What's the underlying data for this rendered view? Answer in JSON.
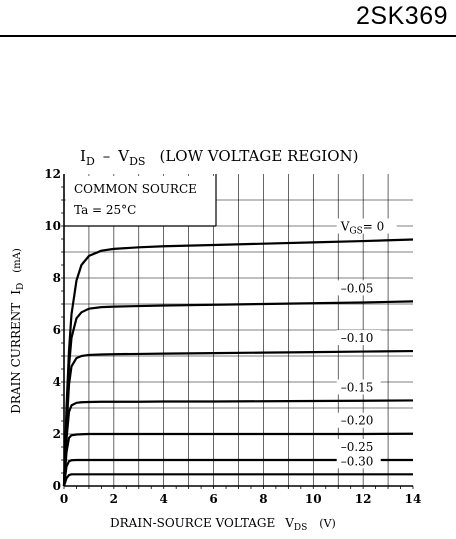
{
  "header": {
    "part_number": "2SK369"
  },
  "chart_data": {
    "type": "line",
    "title": {
      "main_left": "I",
      "main_left_sub": "D",
      "dash": "–",
      "main_right": "V",
      "main_right_sub": "DS",
      "region": "(LOW VOLTAGE REGION)"
    },
    "xlabel": {
      "text": "DRAIN-SOURCE VOLTAGE",
      "symbol": "V",
      "symbol_sub": "DS",
      "unit": "(V)"
    },
    "ylabel": {
      "text": "DRAIN CURRENT",
      "symbol": "I",
      "symbol_sub": "D",
      "unit": "(mA)"
    },
    "xlim": [
      0,
      14
    ],
    "ylim": [
      0,
      12
    ],
    "x_ticks": [
      0,
      2,
      4,
      6,
      8,
      10,
      12,
      14
    ],
    "y_ticks": [
      0,
      2,
      4,
      6,
      8,
      10,
      12
    ],
    "grid": true,
    "conditions": {
      "line1": "COMMON SOURCE",
      "line2": "Ta = 25°C"
    },
    "series_label_prefix": "V",
    "series_label_prefix_sub": "GS",
    "series": [
      {
        "name": "VGS = 0",
        "label": "= 0",
        "x": [
          0,
          0.1,
          0.2,
          0.3,
          0.5,
          0.7,
          1.0,
          1.5,
          2,
          3,
          4,
          6,
          8,
          10,
          12,
          14
        ],
        "y": [
          0,
          3.0,
          5.2,
          6.6,
          7.9,
          8.5,
          8.85,
          9.05,
          9.12,
          9.18,
          9.22,
          9.27,
          9.32,
          9.37,
          9.42,
          9.48
        ]
      },
      {
        "name": "VGS = -0.05",
        "label": "–0.05",
        "x": [
          0,
          0.1,
          0.2,
          0.3,
          0.5,
          0.7,
          1.0,
          1.5,
          2,
          3,
          4,
          6,
          8,
          10,
          12,
          14
        ],
        "y": [
          0,
          2.6,
          4.6,
          5.7,
          6.45,
          6.68,
          6.82,
          6.88,
          6.9,
          6.92,
          6.94,
          6.97,
          7.0,
          7.03,
          7.06,
          7.1
        ]
      },
      {
        "name": "VGS = -0.10",
        "label": "–0.10",
        "x": [
          0,
          0.1,
          0.2,
          0.3,
          0.5,
          0.7,
          1.0,
          1.5,
          2,
          3,
          4,
          6,
          8,
          10,
          12,
          14
        ],
        "y": [
          0,
          2.2,
          3.9,
          4.6,
          4.92,
          5.0,
          5.04,
          5.06,
          5.07,
          5.08,
          5.09,
          5.11,
          5.13,
          5.15,
          5.17,
          5.19
        ]
      },
      {
        "name": "VGS = -0.15",
        "label": "–0.15",
        "x": [
          0,
          0.1,
          0.2,
          0.3,
          0.5,
          0.7,
          1.0,
          1.5,
          2,
          3,
          4,
          6,
          8,
          10,
          12,
          14
        ],
        "y": [
          0,
          1.8,
          2.85,
          3.1,
          3.2,
          3.22,
          3.23,
          3.24,
          3.24,
          3.24,
          3.25,
          3.25,
          3.26,
          3.27,
          3.28,
          3.29
        ]
      },
      {
        "name": "VGS = -0.20",
        "label": "–0.20",
        "x": [
          0,
          0.1,
          0.2,
          0.3,
          0.5,
          0.7,
          1.0,
          1.5,
          2,
          4,
          6,
          8,
          10,
          12,
          14
        ],
        "y": [
          0,
          1.3,
          1.85,
          1.95,
          1.98,
          1.99,
          2.0,
          2.0,
          2.0,
          2.0,
          2.0,
          2.0,
          2.0,
          2.0,
          2.01
        ]
      },
      {
        "name": "VGS = -0.25",
        "label": "–0.25",
        "x": [
          0,
          0.1,
          0.2,
          0.3,
          0.5,
          1.0,
          2,
          4,
          6,
          8,
          10,
          12,
          14
        ],
        "y": [
          0,
          0.75,
          0.95,
          0.99,
          1.0,
          1.0,
          1.0,
          1.0,
          1.0,
          1.0,
          1.0,
          1.0,
          1.0
        ]
      },
      {
        "name": "VGS = -0.30",
        "label": "–0.30",
        "x": [
          0,
          0.1,
          0.2,
          0.3,
          0.5,
          1.0,
          2,
          4,
          6,
          8,
          10,
          12,
          14
        ],
        "y": [
          0,
          0.3,
          0.42,
          0.45,
          0.45,
          0.45,
          0.45,
          0.45,
          0.45,
          0.45,
          0.45,
          0.45,
          0.45
        ]
      }
    ]
  }
}
